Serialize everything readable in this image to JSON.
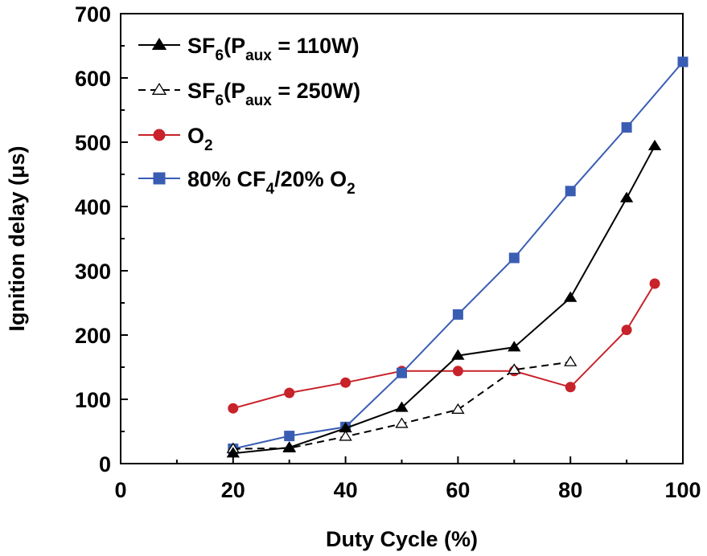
{
  "chart_data": {
    "type": "line",
    "xlabel": "Duty Cycle (%)",
    "ylabel": "Ignition delay (μs)",
    "xlim": [
      0,
      100
    ],
    "ylim": [
      0,
      700
    ],
    "xticks": [
      0,
      20,
      40,
      60,
      80,
      100
    ],
    "yticks": [
      0,
      100,
      200,
      300,
      400,
      500,
      600,
      700
    ],
    "grid": false,
    "legend_position": "top-left",
    "series": [
      {
        "name": "SF6(Paux = 110W)",
        "label_parts": [
          "SF",
          "6",
          "(P",
          "aux",
          " = 110W)"
        ],
        "color": "#000000",
        "marker": "filled-triangle",
        "line_style": "solid",
        "x": [
          20,
          30,
          40,
          50,
          60,
          70,
          80,
          90,
          95
        ],
        "y": [
          16,
          25,
          55,
          87,
          168,
          181,
          258,
          413,
          494
        ]
      },
      {
        "name": "SF6(Paux = 250W)",
        "label_parts": [
          "SF",
          "6",
          "(P",
          "aux",
          " = 250W)"
        ],
        "color": "#000000",
        "marker": "open-triangle",
        "line_style": "dashed",
        "x": [
          20,
          30,
          40,
          50,
          60,
          70,
          80
        ],
        "y": [
          23,
          24,
          42,
          62,
          84,
          146,
          158
        ]
      },
      {
        "name": "O2",
        "label_parts": [
          "O",
          "2"
        ],
        "color": "#c8222a",
        "marker": "circle",
        "line_style": "solid",
        "x": [
          20,
          30,
          40,
          50,
          60,
          70,
          80,
          90,
          95
        ],
        "y": [
          86,
          110,
          126,
          144,
          144,
          144,
          119,
          208,
          280
        ]
      },
      {
        "name": "80% CF4/20% O2",
        "label_parts": [
          "80% CF",
          "4",
          "/20% O",
          "2"
        ],
        "color": "#3a5db4",
        "marker": "square",
        "line_style": "solid",
        "x": [
          20,
          30,
          40,
          50,
          60,
          70,
          80,
          90,
          100
        ],
        "y": [
          23,
          43,
          57,
          141,
          232,
          320,
          424,
          523,
          625
        ]
      }
    ]
  }
}
